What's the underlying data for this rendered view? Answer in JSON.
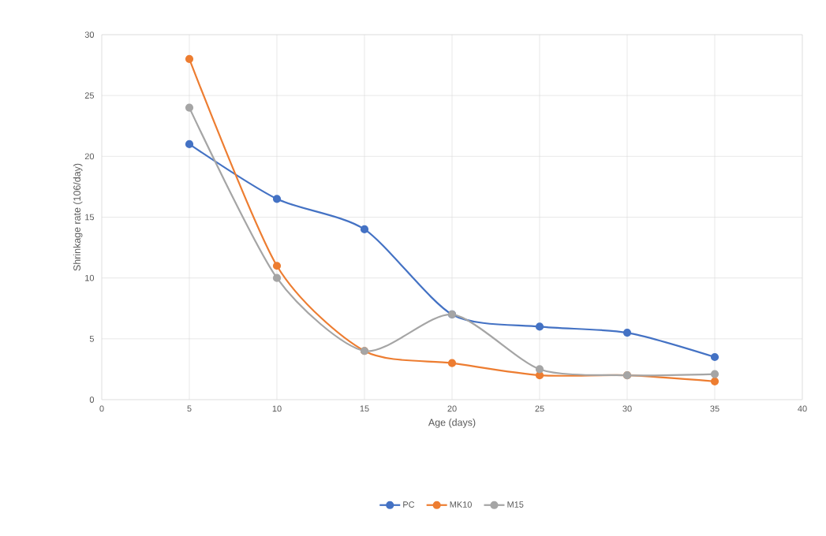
{
  "chart_data": {
    "type": "line",
    "xlabel": "Age (days)",
    "ylabel": "Shrinkage rate (106/day)",
    "x": [
      5,
      10,
      15,
      20,
      25,
      30,
      35
    ],
    "series": [
      {
        "name": "PC",
        "color": "#4472c4",
        "values": [
          21,
          16.5,
          14,
          7,
          6,
          5.5,
          3.5
        ]
      },
      {
        "name": "MK10",
        "color": "#ed7d31",
        "values": [
          28,
          11,
          4,
          3,
          2,
          2,
          1.5
        ]
      },
      {
        "name": "M15",
        "color": "#a5a5a5",
        "values": [
          24,
          10,
          4,
          7,
          2.5,
          2,
          2.1
        ]
      }
    ],
    "xlim": [
      0,
      40
    ],
    "ylim": [
      0,
      30
    ],
    "xticks": [
      0,
      5,
      10,
      15,
      20,
      25,
      30,
      35,
      40
    ],
    "yticks": [
      0,
      5,
      10,
      15,
      20,
      25,
      30
    ],
    "grid": true,
    "legend": "bottom",
    "marker": "circle",
    "line_style": "solid"
  }
}
